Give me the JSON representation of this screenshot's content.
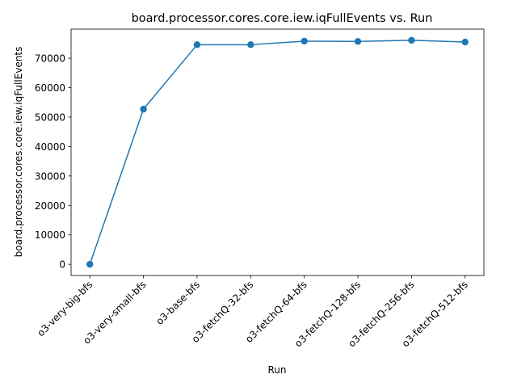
{
  "chart_data": {
    "type": "line",
    "title": "board.processor.cores.core.iew.iqFullEvents vs. Run",
    "xlabel": "Run",
    "ylabel": "board.processor.cores.core.iew.iqFullEvents",
    "categories": [
      "o3-very-big-bfs",
      "o3-very-small-bfs",
      "o3-base-bfs",
      "o3-fetchQ-32-bfs",
      "o3-fetchQ-64-bfs",
      "o3-fetchQ-128-bfs",
      "o3-fetchQ-256-bfs",
      "o3-fetchQ-512-bfs"
    ],
    "series": [
      {
        "values": [
          0,
          52700,
          74600,
          74600,
          75800,
          75700,
          76100,
          75500
        ],
        "color": "#1f77b4",
        "marker": "circle"
      }
    ],
    "yticks": [
      0,
      10000,
      20000,
      30000,
      40000,
      50000,
      60000,
      70000
    ],
    "ylim": [
      -3800,
      79900
    ],
    "grid": false,
    "legend": "none"
  }
}
